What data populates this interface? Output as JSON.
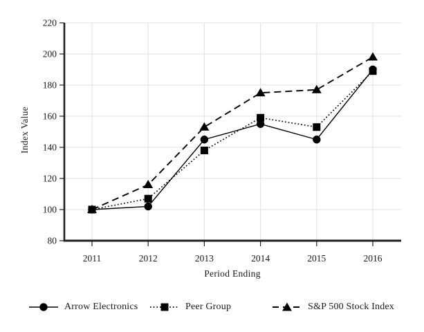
{
  "chart_data": {
    "type": "line",
    "title": "",
    "xlabel": "Period Ending",
    "ylabel": "Index Value",
    "categories": [
      "2011",
      "2012",
      "2013",
      "2014",
      "2015",
      "2016"
    ],
    "series": [
      {
        "name": "Arrow Electronics",
        "marker": "circle",
        "line": "solid",
        "values": [
          100,
          102,
          145,
          155,
          145,
          190
        ]
      },
      {
        "name": "Peer Group",
        "marker": "square",
        "line": "dotted",
        "values": [
          100,
          107,
          138,
          159,
          153,
          189
        ]
      },
      {
        "name": "S&P 500 Stock Index",
        "marker": "triangle",
        "line": "dashed",
        "values": [
          100,
          116,
          153,
          175,
          177,
          198
        ]
      }
    ],
    "ylim": [
      80,
      220
    ],
    "yticks": [
      80,
      100,
      120,
      140,
      160,
      180,
      200,
      220
    ],
    "grid": true,
    "legend_position": "bottom",
    "colors": {
      "series": "#000000",
      "axis": "#1f1f1f",
      "grid": "#e6e6e6",
      "text": "#1a1a1a"
    }
  }
}
